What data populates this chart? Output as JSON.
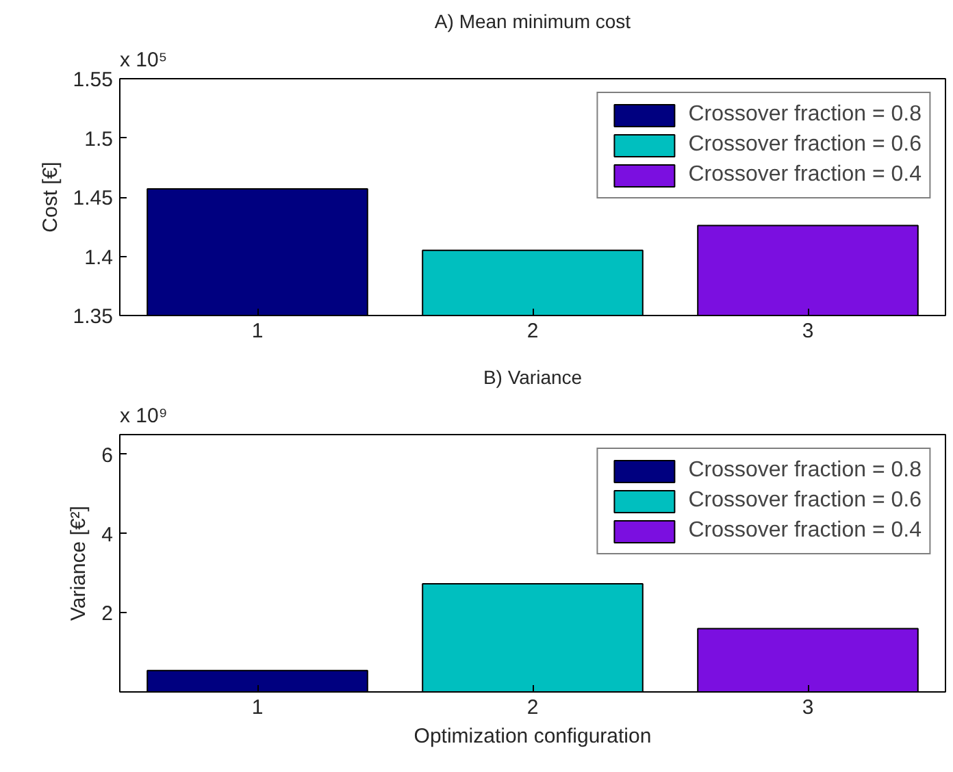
{
  "chart_data": [
    {
      "type": "bar",
      "title": "A) Mean minimum cost",
      "ylabel": "Cost [€]",
      "categories": [
        "1",
        "2",
        "3"
      ],
      "series": [
        {
          "name": "Crossover fraction = 0.8",
          "color": "#000080",
          "values": [
            1.457,
            null,
            null
          ]
        },
        {
          "name": "Crossover fraction = 0.6",
          "color": "#00bfbf",
          "values": [
            null,
            1.405,
            null
          ]
        },
        {
          "name": "Crossover fraction = 0.4",
          "color": "#7b0fe0",
          "values": [
            null,
            null,
            1.426
          ]
        }
      ],
      "ylim": [
        1.35,
        1.55
      ],
      "yticks": [
        1.35,
        1.4,
        1.45,
        1.5,
        1.55
      ],
      "annotations": [
        "x 10⁵"
      ],
      "legend": "top right",
      "grid": false
    },
    {
      "type": "bar",
      "title": "B) Variance",
      "ylabel": "Variance [€²]",
      "xlabel": "Optimization configuration",
      "categories": [
        "1",
        "2",
        "3"
      ],
      "series": [
        {
          "name": "Crossover fraction = 0.8",
          "color": "#000080",
          "values": [
            0.54,
            null,
            null
          ]
        },
        {
          "name": "Crossover fraction = 0.6",
          "color": "#00bfbf",
          "values": [
            null,
            2.73,
            null
          ]
        },
        {
          "name": "Crossover fraction = 0.4",
          "color": "#7b0fe0",
          "values": [
            null,
            null,
            1.6
          ]
        }
      ],
      "ylim": [
        0,
        6.5
      ],
      "yticks": [
        2,
        4,
        6
      ],
      "annotations": [
        "x 10⁹"
      ],
      "legend": "top right",
      "grid": false
    }
  ]
}
